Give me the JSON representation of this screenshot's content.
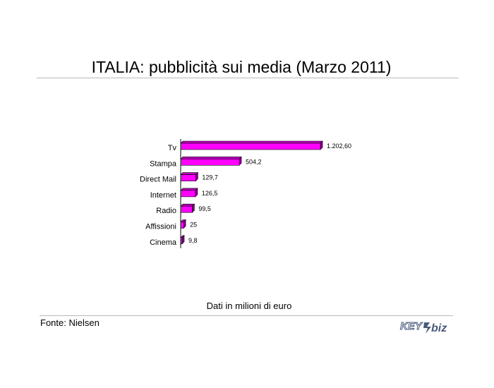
{
  "title": "ITALIA: pubblicità sui media (Marzo 2011)",
  "footnote": "Dati in milioni di euro",
  "source": "Fonte: Nielsen",
  "logo": {
    "text_left": "KEY",
    "text_right": "biz",
    "color": "#4a5a7a"
  },
  "colors": {
    "bar_front": "#ff00ff",
    "bar_top": "#c000c0",
    "bar_side": "#800080",
    "bar_edge": "#000000"
  },
  "chart_data": {
    "type": "bar",
    "orientation": "horizontal",
    "categories": [
      "Tv",
      "Stampa",
      "Direct Mail",
      "Internet",
      "Radio",
      "Affissioni",
      "Cinema"
    ],
    "values": [
      1202.6,
      504.2,
      129.7,
      126.5,
      99.5,
      25,
      9.8
    ],
    "value_labels": [
      "1.202,60",
      "504,2",
      "129,7",
      "126,5",
      "99,5",
      "25",
      "9,8"
    ],
    "xlim": [
      0,
      1202.6
    ],
    "grid": false,
    "legend": "none",
    "style": "3d"
  }
}
